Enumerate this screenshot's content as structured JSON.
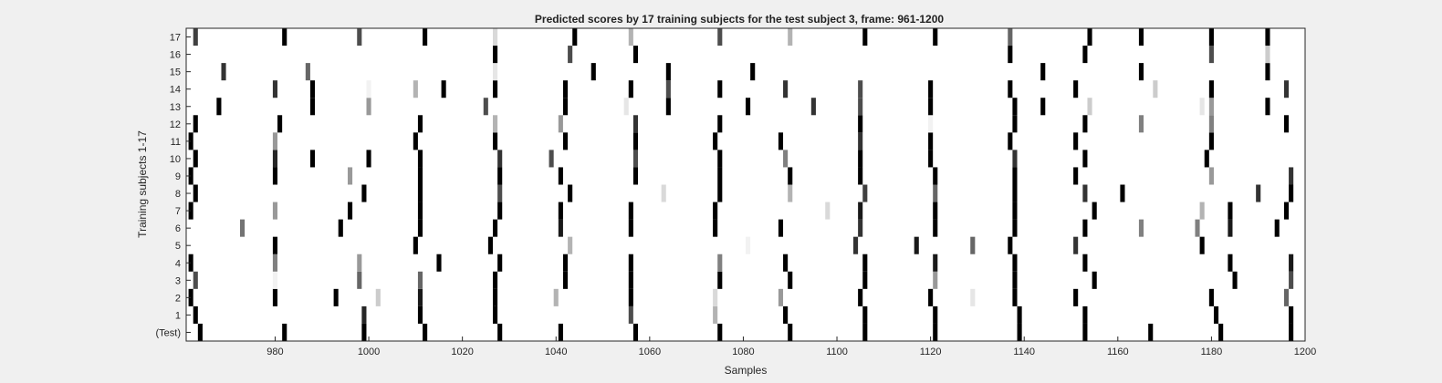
{
  "chart_data": {
    "type": "heatmap",
    "title": "Predicted scores by 17 training subjects for the test subject 3, frame: 961-1200",
    "xlabel": "Samples",
    "ylabel": "Training subjects 1-17",
    "xlim": [
      961,
      1200
    ],
    "xticks": [
      980,
      1000,
      1020,
      1040,
      1060,
      1080,
      1100,
      1120,
      1140,
      1160,
      1180,
      1200
    ],
    "rows": [
      {
        "label": "(Test)",
        "marks": [
          [
            964,
            1.0
          ],
          [
            982,
            1.0
          ],
          [
            999,
            1.0
          ],
          [
            1012,
            1.0
          ],
          [
            1028,
            1.0
          ],
          [
            1041,
            1.0
          ],
          [
            1057,
            1.0
          ],
          [
            1075,
            1.0
          ],
          [
            1090,
            1.0
          ],
          [
            1106,
            1.0
          ],
          [
            1121,
            1.0
          ],
          [
            1139,
            1.0
          ],
          [
            1153,
            1.0
          ],
          [
            1167,
            1.0
          ],
          [
            1182,
            1.0
          ],
          [
            1197,
            1.0
          ]
        ]
      },
      {
        "label": "1",
        "marks": [
          [
            963,
            1.0
          ],
          [
            999,
            0.85
          ],
          [
            1011,
            1.0
          ],
          [
            1027,
            1.0
          ],
          [
            1056,
            0.7
          ],
          [
            1074,
            0.3
          ],
          [
            1089,
            1.0
          ],
          [
            1106,
            1.0
          ],
          [
            1121,
            1.0
          ],
          [
            1139,
            1.0
          ],
          [
            1153,
            1.0
          ],
          [
            1181,
            1.0
          ],
          [
            1197,
            1.0
          ]
        ]
      },
      {
        "label": "2",
        "marks": [
          [
            962,
            1.0
          ],
          [
            980,
            1.0
          ],
          [
            993,
            1.0
          ],
          [
            1002,
            0.2
          ],
          [
            1011,
            0.9
          ],
          [
            1027,
            1.0
          ],
          [
            1040,
            0.3
          ],
          [
            1056,
            1.0
          ],
          [
            1074,
            0.15
          ],
          [
            1088,
            0.4
          ],
          [
            1105,
            1.0
          ],
          [
            1120,
            1.0
          ],
          [
            1129,
            0.1
          ],
          [
            1138,
            1.0
          ],
          [
            1151,
            1.0
          ],
          [
            1180,
            1.0
          ],
          [
            1196,
            0.6
          ]
        ]
      },
      {
        "label": "3",
        "marks": [
          [
            963,
            0.7
          ],
          [
            980,
            0.05
          ],
          [
            998,
            0.6
          ],
          [
            1011,
            0.6
          ],
          [
            1027,
            1.0
          ],
          [
            1042,
            1.0
          ],
          [
            1056,
            1.0
          ],
          [
            1075,
            1.0
          ],
          [
            1090,
            1.0
          ],
          [
            1106,
            1.0
          ],
          [
            1121,
            0.4
          ],
          [
            1138,
            1.0
          ],
          [
            1155,
            1.0
          ],
          [
            1185,
            1.0
          ],
          [
            1197,
            0.7
          ]
        ]
      },
      {
        "label": "4",
        "marks": [
          [
            962,
            1.0
          ],
          [
            980,
            0.5
          ],
          [
            998,
            0.4
          ],
          [
            1015,
            1.0
          ],
          [
            1028,
            1.0
          ],
          [
            1042,
            1.0
          ],
          [
            1056,
            1.0
          ],
          [
            1075,
            0.5
          ],
          [
            1089,
            1.0
          ],
          [
            1106,
            1.0
          ],
          [
            1121,
            0.9
          ],
          [
            1138,
            1.0
          ],
          [
            1153,
            1.0
          ],
          [
            1184,
            1.0
          ],
          [
            1197,
            0.9
          ]
        ]
      },
      {
        "label": "5",
        "marks": [
          [
            980,
            1.0
          ],
          [
            1010,
            1.0
          ],
          [
            1026,
            1.0
          ],
          [
            1043,
            0.3
          ],
          [
            1081,
            0.05
          ],
          [
            1104,
            0.8
          ],
          [
            1117,
            0.9
          ],
          [
            1129,
            0.6
          ],
          [
            1137,
            1.0
          ],
          [
            1151,
            0.8
          ],
          [
            1178,
            1.0
          ]
        ]
      },
      {
        "label": "6",
        "marks": [
          [
            973,
            0.55
          ],
          [
            994,
            1.0
          ],
          [
            1011,
            1.0
          ],
          [
            1027,
            1.0
          ],
          [
            1041,
            0.9
          ],
          [
            1056,
            1.0
          ],
          [
            1074,
            1.0
          ],
          [
            1088,
            1.0
          ],
          [
            1105,
            0.8
          ],
          [
            1121,
            1.0
          ],
          [
            1138,
            1.0
          ],
          [
            1153,
            1.0
          ],
          [
            1165,
            0.5
          ],
          [
            1177,
            0.5
          ],
          [
            1184,
            0.9
          ],
          [
            1194,
            1.0
          ]
        ]
      },
      {
        "label": "7",
        "marks": [
          [
            962,
            1.0
          ],
          [
            980,
            0.4
          ],
          [
            996,
            1.0
          ],
          [
            1011,
            1.0
          ],
          [
            1028,
            1.0
          ],
          [
            1041,
            1.0
          ],
          [
            1056,
            1.0
          ],
          [
            1074,
            1.0
          ],
          [
            1098,
            0.15
          ],
          [
            1105,
            0.9
          ],
          [
            1121,
            1.0
          ],
          [
            1138,
            1.0
          ],
          [
            1155,
            1.0
          ],
          [
            1178,
            0.3
          ],
          [
            1184,
            1.0
          ],
          [
            1196,
            1.0
          ]
        ]
      },
      {
        "label": "8",
        "marks": [
          [
            963,
            1.0
          ],
          [
            999,
            1.0
          ],
          [
            1011,
            1.0
          ],
          [
            1028,
            0.7
          ],
          [
            1043,
            1.0
          ],
          [
            1063,
            0.15
          ],
          [
            1075,
            1.0
          ],
          [
            1090,
            0.3
          ],
          [
            1106,
            0.75
          ],
          [
            1121,
            0.6
          ],
          [
            1138,
            1.0
          ],
          [
            1153,
            0.8
          ],
          [
            1161,
            1.0
          ],
          [
            1190,
            0.8
          ],
          [
            1197,
            1.0
          ]
        ]
      },
      {
        "label": "9",
        "marks": [
          [
            962,
            1.0
          ],
          [
            980,
            1.0
          ],
          [
            996,
            0.4
          ],
          [
            1011,
            1.0
          ],
          [
            1028,
            1.0
          ],
          [
            1041,
            1.0
          ],
          [
            1057,
            1.0
          ],
          [
            1075,
            1.0
          ],
          [
            1090,
            1.0
          ],
          [
            1105,
            1.0
          ],
          [
            1121,
            1.0
          ],
          [
            1138,
            1.0
          ],
          [
            1151,
            1.0
          ],
          [
            1180,
            0.4
          ],
          [
            1197,
            0.8
          ]
        ]
      },
      {
        "label": "10",
        "marks": [
          [
            963,
            1.0
          ],
          [
            980,
            0.85
          ],
          [
            988,
            1.0
          ],
          [
            1000,
            1.0
          ],
          [
            1011,
            1.0
          ],
          [
            1028,
            0.8
          ],
          [
            1039,
            0.7
          ],
          [
            1057,
            0.7
          ],
          [
            1075,
            1.0
          ],
          [
            1089,
            0.5
          ],
          [
            1105,
            1.0
          ],
          [
            1120,
            1.0
          ],
          [
            1138,
            0.8
          ],
          [
            1153,
            1.0
          ],
          [
            1179,
            1.0
          ]
        ]
      },
      {
        "label": "11",
        "marks": [
          [
            962,
            1.0
          ],
          [
            980,
            0.4
          ],
          [
            1010,
            1.0
          ],
          [
            1027,
            1.0
          ],
          [
            1042,
            1.0
          ],
          [
            1057,
            1.0
          ],
          [
            1074,
            1.0
          ],
          [
            1088,
            1.0
          ],
          [
            1105,
            0.8
          ],
          [
            1120,
            1.0
          ],
          [
            1137,
            1.0
          ],
          [
            1151,
            1.0
          ],
          [
            1180,
            1.0
          ]
        ]
      },
      {
        "label": "12",
        "marks": [
          [
            963,
            1.0
          ],
          [
            981,
            1.0
          ],
          [
            1011,
            1.0
          ],
          [
            1027,
            0.3
          ],
          [
            1041,
            0.4
          ],
          [
            1057,
            0.8
          ],
          [
            1075,
            1.0
          ],
          [
            1105,
            1.0
          ],
          [
            1120,
            0.05
          ],
          [
            1138,
            1.0
          ],
          [
            1153,
            1.0
          ],
          [
            1165,
            0.5
          ],
          [
            1180,
            0.5
          ],
          [
            1196,
            1.0
          ]
        ]
      },
      {
        "label": "13",
        "marks": [
          [
            968,
            1.0
          ],
          [
            988,
            1.0
          ],
          [
            1000,
            0.4
          ],
          [
            1025,
            0.7
          ],
          [
            1042,
            1.0
          ],
          [
            1055,
            0.1
          ],
          [
            1064,
            1.0
          ],
          [
            1081,
            1.0
          ],
          [
            1095,
            0.8
          ],
          [
            1105,
            0.7
          ],
          [
            1120,
            1.0
          ],
          [
            1138,
            1.0
          ],
          [
            1144,
            1.0
          ],
          [
            1154,
            0.2
          ],
          [
            1178,
            0.1
          ],
          [
            1180,
            0.4
          ],
          [
            1192,
            1.0
          ]
        ]
      },
      {
        "label": "14",
        "marks": [
          [
            980,
            0.8
          ],
          [
            988,
            1.0
          ],
          [
            1000,
            0.05
          ],
          [
            1010,
            0.3
          ],
          [
            1016,
            1.0
          ],
          [
            1027,
            1.0
          ],
          [
            1042,
            1.0
          ],
          [
            1056,
            1.0
          ],
          [
            1064,
            0.7
          ],
          [
            1075,
            1.0
          ],
          [
            1089,
            0.8
          ],
          [
            1105,
            0.7
          ],
          [
            1120,
            1.0
          ],
          [
            1137,
            1.0
          ],
          [
            1151,
            1.0
          ],
          [
            1168,
            0.2
          ],
          [
            1180,
            1.0
          ],
          [
            1196,
            0.8
          ]
        ]
      },
      {
        "label": "15",
        "marks": [
          [
            969,
            0.8
          ],
          [
            987,
            0.6
          ],
          [
            1027,
            0.1
          ],
          [
            1048,
            1.0
          ],
          [
            1064,
            1.0
          ],
          [
            1082,
            1.0
          ],
          [
            1144,
            1.0
          ],
          [
            1165,
            1.0
          ],
          [
            1192,
            1.0
          ]
        ]
      },
      {
        "label": "16",
        "marks": [
          [
            1027,
            1.0
          ],
          [
            1043,
            0.7
          ],
          [
            1057,
            1.0
          ],
          [
            1137,
            1.0
          ],
          [
            1153,
            1.0
          ],
          [
            1180,
            0.7
          ],
          [
            1192,
            0.2
          ]
        ]
      },
      {
        "label": "17",
        "marks": [
          [
            963,
            0.75
          ],
          [
            982,
            1.0
          ],
          [
            998,
            0.7
          ],
          [
            1012,
            1.0
          ],
          [
            1027,
            0.15
          ],
          [
            1044,
            1.0
          ],
          [
            1056,
            0.3
          ],
          [
            1075,
            0.7
          ],
          [
            1090,
            0.3
          ],
          [
            1106,
            1.0
          ],
          [
            1121,
            1.0
          ],
          [
            1137,
            0.6
          ],
          [
            1154,
            1.0
          ],
          [
            1165,
            1.0
          ],
          [
            1180,
            1.0
          ],
          [
            1192,
            1.0
          ]
        ]
      }
    ]
  }
}
